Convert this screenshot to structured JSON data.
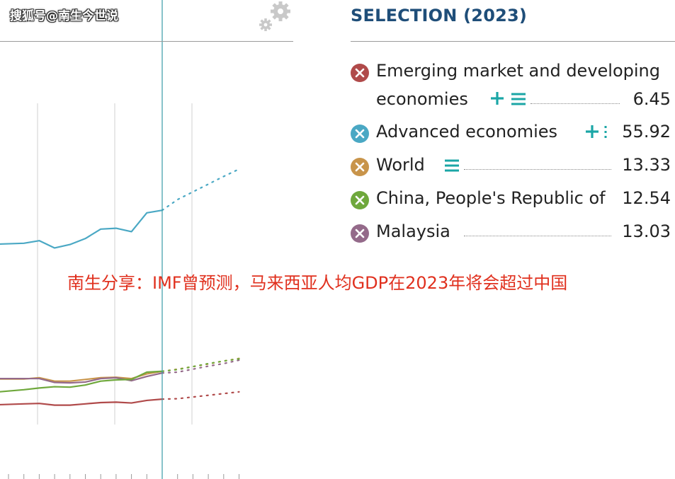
{
  "watermark": "搜狐号@南生今世说",
  "selection": {
    "title": "SELECTION (2023)",
    "items": [
      {
        "label_line1": "Emerging market and developing",
        "label_line2": "economies",
        "value": "6.45",
        "color": "#b04a4a",
        "controls": [
          "plus-icon",
          "list-icon"
        ]
      },
      {
        "label": "Advanced economies",
        "value": "55.92",
        "color": "#4aa8c4",
        "controls": [
          "plus-icon",
          "list-icon"
        ]
      },
      {
        "label": "World",
        "value": "13.33",
        "color": "#c8944a",
        "controls": [
          "list-icon"
        ]
      },
      {
        "label": "China, People's Republic of",
        "value": "12.54",
        "color": "#6fa83c",
        "controls": []
      },
      {
        "label": "Malaysia",
        "value": "13.03",
        "color": "#946a8a",
        "controls": []
      }
    ]
  },
  "caption": "南生分享：IMF曾预测，马来西亚人均GDP在2023年将会超过中国",
  "chart_data": {
    "type": "line",
    "title": "",
    "xlabel": "",
    "ylabel": "",
    "grid": "vertical",
    "x": [
      0,
      1,
      2,
      3,
      4,
      5,
      6,
      7,
      8,
      9,
      10,
      11,
      12,
      13,
      14,
      15
    ],
    "forecast_from_index": 10,
    "series": [
      {
        "name": "Advanced economies",
        "color": "#4aa8c4",
        "values": [
          42.5,
          42.7,
          43.3,
          41.6,
          42.4,
          43.8,
          46.0,
          46.2,
          45.4,
          49.8,
          50.4,
          52.9,
          54.7,
          56.5,
          58.3,
          60.0
        ]
      },
      {
        "name": "World",
        "color": "#c8944a",
        "values": [
          11.0,
          11.0,
          11.3,
          10.5,
          10.5,
          10.9,
          11.3,
          11.4,
          11.1,
          12.2,
          12.8,
          13.3,
          13.9,
          14.5,
          15.2,
          15.8
        ]
      },
      {
        "name": "Malaysia",
        "color": "#946a8a",
        "values": [
          11.1,
          11.1,
          11.1,
          10.2,
          10.1,
          10.3,
          11.1,
          11.3,
          10.6,
          11.6,
          12.4,
          12.6,
          13.3,
          14.0,
          14.6,
          15.4
        ]
      },
      {
        "name": "China, People's Republic of",
        "color": "#6fa83c",
        "values": [
          8.0,
          8.5,
          8.9,
          9.2,
          9.1,
          9.6,
          10.5,
          10.8,
          10.9,
          12.6,
          12.8,
          13.2,
          13.9,
          14.6,
          15.2,
          15.7
        ]
      },
      {
        "name": "Emerging market and developing economies",
        "color": "#b04a4a",
        "values": [
          5.0,
          5.2,
          5.3,
          4.9,
          4.9,
          5.2,
          5.5,
          5.6,
          5.4,
          6.0,
          6.3,
          6.4,
          6.8,
          7.2,
          7.6,
          8.0
        ]
      }
    ]
  }
}
